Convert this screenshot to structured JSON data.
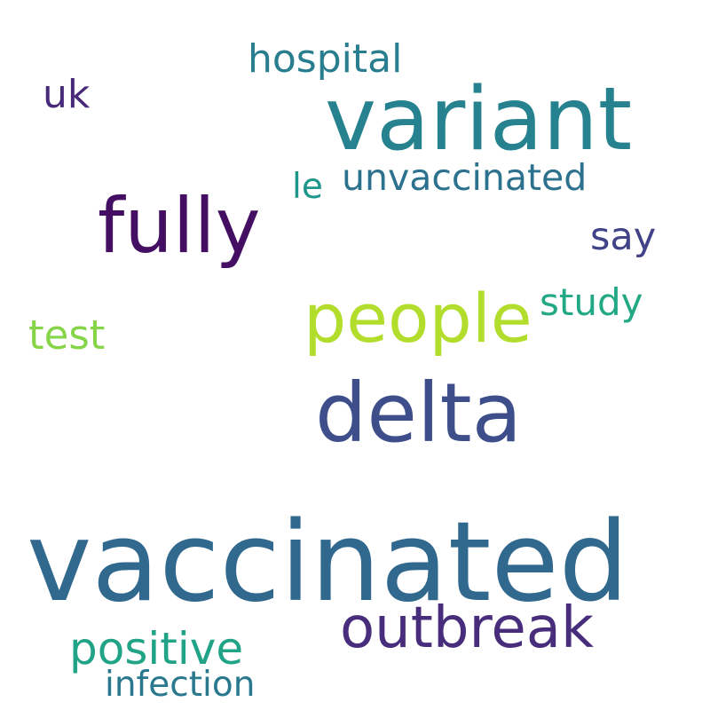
{
  "background": "#ffffff",
  "words": [
    {
      "key": "vaccinated",
      "text": "vaccinated",
      "color": "#31688e"
    },
    {
      "key": "variant",
      "text": "variant",
      "color": "#26828e"
    },
    {
      "key": "fully",
      "text": "fully",
      "color": "#440f62"
    },
    {
      "key": "delta",
      "text": "delta",
      "color": "#3d4e8a"
    },
    {
      "key": "people",
      "text": "people",
      "color": "#b2dd2d"
    },
    {
      "key": "outbreak",
      "text": "outbreak",
      "color": "#472d7b"
    },
    {
      "key": "positive",
      "text": "positive",
      "color": "#20a386"
    },
    {
      "key": "unvaccinated",
      "text": "unvaccinated",
      "color": "#2c728e"
    },
    {
      "key": "hospital",
      "text": "hospital",
      "color": "#287d8e"
    },
    {
      "key": "infection",
      "text": "infection",
      "color": "#2a788e"
    },
    {
      "key": "study",
      "text": "study",
      "color": "#22a884"
    },
    {
      "key": "test",
      "text": "test",
      "color": "#86d549"
    },
    {
      "key": "uk",
      "text": "uk",
      "color": "#482979"
    },
    {
      "key": "say",
      "text": "say",
      "color": "#404387"
    },
    {
      "key": "le",
      "text": "le",
      "color": "#1f968b"
    }
  ]
}
